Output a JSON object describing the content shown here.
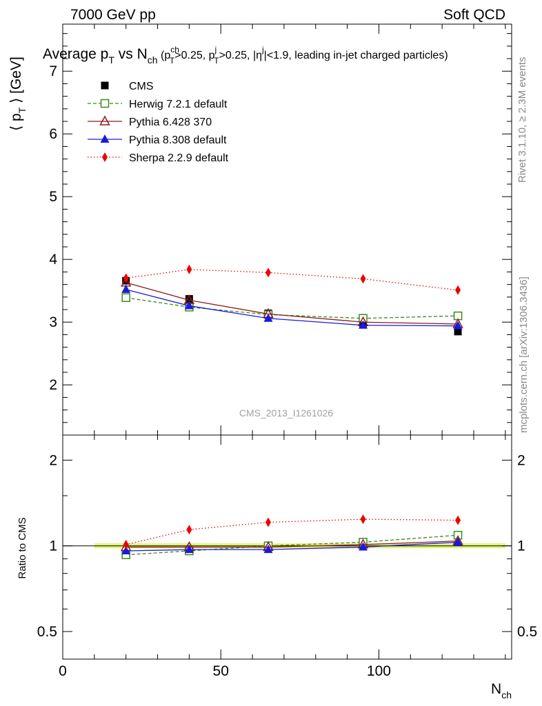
{
  "header": {
    "left": "7000 GeV pp",
    "right": "Soft QCD"
  },
  "side_labels": {
    "rivet": "Rivet 3.1.10, ≥ 2.3M events",
    "mcplots": "mcplots.cern.ch [arXiv:1306.3436]"
  },
  "watermark": "CMS_2013_I1261026",
  "chart_data": [
    {
      "type": "line",
      "title_parts": {
        "prefix": "Average p",
        "sub_T": "T",
        "vs": " vs N",
        "sub_ch": "ch",
        "cut1": " (p",
        "cut1_sup": "ch",
        "cut1_sub": "T",
        "cut1_val": ">0.25, p",
        "cut2_sup": "j",
        "cut2_sub": "T",
        "cut2_val": ">0.25, |η",
        "eta_sup": "j",
        "eta_val": "|<1.9, leading in-jet charged particles)"
      },
      "ylabel": "⟨ p",
      "ylabel_sub": "T",
      "ylabel_unit": " ⟩ [GeV]",
      "xlim": [
        0,
        142
      ],
      "ylim": [
        1.2,
        7.75
      ],
      "y_ticks": [
        "2",
        "3",
        "4",
        "5",
        "6",
        "7"
      ],
      "legend_position": "top-left",
      "series": [
        {
          "name": "CMS",
          "color": "#000000",
          "marker": "square-filled",
          "line": "none",
          "x": [
            20,
            40,
            65,
            95,
            125
          ],
          "y": [
            3.66,
            3.37,
            3.14,
            2.97,
            2.85
          ]
        },
        {
          "name": "Herwig 7.2.1 default",
          "color": "#3a8a1a",
          "marker": "square-open",
          "line": "dashed",
          "x": [
            20,
            40,
            65,
            95,
            125
          ],
          "y": [
            3.39,
            3.24,
            3.12,
            3.06,
            3.1
          ]
        },
        {
          "name": "Pythia 6.428 370",
          "color": "#8b1a1a",
          "marker": "triangle-open",
          "line": "solid",
          "x": [
            20,
            40,
            65,
            95,
            125
          ],
          "y": [
            3.63,
            3.35,
            3.13,
            3.0,
            2.97
          ]
        },
        {
          "name": "Pythia 8.308 default",
          "color": "#1a1adc",
          "marker": "triangle-filled",
          "line": "solid",
          "x": [
            20,
            40,
            65,
            95,
            125
          ],
          "y": [
            3.52,
            3.26,
            3.06,
            2.95,
            2.94
          ]
        },
        {
          "name": "Sherpa 2.2.9 default",
          "color": "#ee0000",
          "marker": "diamond-filled",
          "line": "dotted",
          "x": [
            20,
            40,
            65,
            95,
            125
          ],
          "y": [
            3.7,
            3.84,
            3.79,
            3.69,
            3.51
          ]
        }
      ]
    },
    {
      "type": "line",
      "ylabel": "Ratio to CMS",
      "xlabel": "N",
      "xlabel_sub": "ch",
      "xlim": [
        0,
        142
      ],
      "ylim": [
        0.4,
        2.45
      ],
      "y_ticks": [
        {
          "v": 0.5,
          "label": "0.5"
        },
        {
          "v": 1,
          "label": "1"
        },
        {
          "v": 2,
          "label": "2"
        }
      ],
      "x_ticks": [
        "0",
        "50",
        "100"
      ],
      "band": {
        "x_from": 10,
        "x_to": 140,
        "y_low": 0.98,
        "y_high": 1.02,
        "color": "#e2f27a"
      },
      "series": [
        {
          "name": "Herwig 7.2.1 default",
          "color": "#3a8a1a",
          "marker": "square-open",
          "line": "dashed",
          "x": [
            20,
            40,
            65,
            95,
            125
          ],
          "y": [
            0.93,
            0.96,
            1.0,
            1.03,
            1.09
          ]
        },
        {
          "name": "Pythia 6.428 370",
          "color": "#8b1a1a",
          "marker": "triangle-open",
          "line": "solid",
          "x": [
            20,
            40,
            65,
            95,
            125
          ],
          "y": [
            0.99,
            0.99,
            0.99,
            1.01,
            1.04
          ]
        },
        {
          "name": "Pythia 8.308 default",
          "color": "#1a1adc",
          "marker": "triangle-filled",
          "line": "solid",
          "x": [
            20,
            40,
            65,
            95,
            125
          ],
          "y": [
            0.96,
            0.97,
            0.97,
            0.99,
            1.03
          ]
        },
        {
          "name": "Sherpa 2.2.9 default",
          "color": "#ee0000",
          "marker": "diamond-filled",
          "line": "dotted",
          "x": [
            20,
            40,
            65,
            95,
            125
          ],
          "y": [
            1.01,
            1.14,
            1.21,
            1.24,
            1.23
          ]
        }
      ]
    }
  ]
}
